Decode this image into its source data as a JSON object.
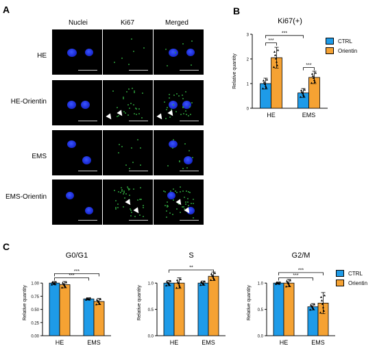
{
  "panels": {
    "a": "A",
    "b": "B",
    "c": "C"
  },
  "microscopy": {
    "columns": [
      "Nuclei",
      "Ki67",
      "Merged"
    ],
    "rows": [
      "HE",
      "HE-Orientin",
      "EMS",
      "EMS-Orientin"
    ]
  },
  "colors": {
    "ctrl": "#1E9BE8",
    "orientin": "#F5A233"
  },
  "legend": {
    "ctrl": "CTRL",
    "orientin": "Orientin"
  },
  "chart_data": [
    {
      "id": "ki67",
      "type": "bar",
      "title": "Ki67(+)",
      "ylabel": "Relative quantity",
      "categories": [
        "HE",
        "EMS"
      ],
      "ylim": [
        0,
        3
      ],
      "yticks": [
        0,
        1,
        2,
        3
      ],
      "series": [
        {
          "name": "CTRL",
          "values": [
            1.0,
            0.62
          ],
          "errors": [
            0.22,
            0.18
          ]
        },
        {
          "name": "Orientin",
          "values": [
            2.05,
            1.25
          ],
          "errors": [
            0.42,
            0.25
          ]
        }
      ],
      "significance": [
        "***",
        "***",
        "***"
      ]
    },
    {
      "id": "g0g1",
      "type": "bar",
      "title": "G0/G1",
      "ylabel": "Relative quantity",
      "categories": [
        "HE",
        "EMS"
      ],
      "ylim": [
        0,
        1.25
      ],
      "yticks": [
        0.0,
        0.25,
        0.5,
        0.75,
        1.0
      ],
      "series": [
        {
          "name": "CTRL",
          "values": [
            1.0,
            0.7
          ],
          "errors": [
            0.03,
            0.02
          ]
        },
        {
          "name": "Orientin",
          "values": [
            0.97,
            0.65
          ],
          "errors": [
            0.06,
            0.06
          ]
        }
      ],
      "significance": [
        "***",
        "***"
      ]
    },
    {
      "id": "s",
      "type": "bar",
      "title": "S",
      "ylabel": "Relative quantity",
      "categories": [
        "HE",
        "EMS"
      ],
      "ylim": [
        0,
        1.25
      ],
      "yticks": [
        0.0,
        0.5,
        1.0
      ],
      "series": [
        {
          "name": "CTRL",
          "values": [
            1.0,
            1.0
          ],
          "errors": [
            0.05,
            0.04
          ]
        },
        {
          "name": "Orientin",
          "values": [
            1.0,
            1.13
          ],
          "errors": [
            0.1,
            0.08
          ]
        }
      ],
      "significance": [
        "**"
      ]
    },
    {
      "id": "g2m",
      "type": "bar",
      "title": "G2/M",
      "ylabel": "Relative quantity",
      "categories": [
        "HE",
        "EMS"
      ],
      "ylim": [
        0,
        1.25
      ],
      "yticks": [
        0.0,
        0.5,
        1.0
      ],
      "series": [
        {
          "name": "CTRL",
          "values": [
            1.0,
            0.55
          ],
          "errors": [
            0.02,
            0.06
          ]
        },
        {
          "name": "Orientin",
          "values": [
            1.0,
            0.62
          ],
          "errors": [
            0.07,
            0.2
          ]
        }
      ],
      "significance": [
        "***",
        "***"
      ]
    }
  ]
}
